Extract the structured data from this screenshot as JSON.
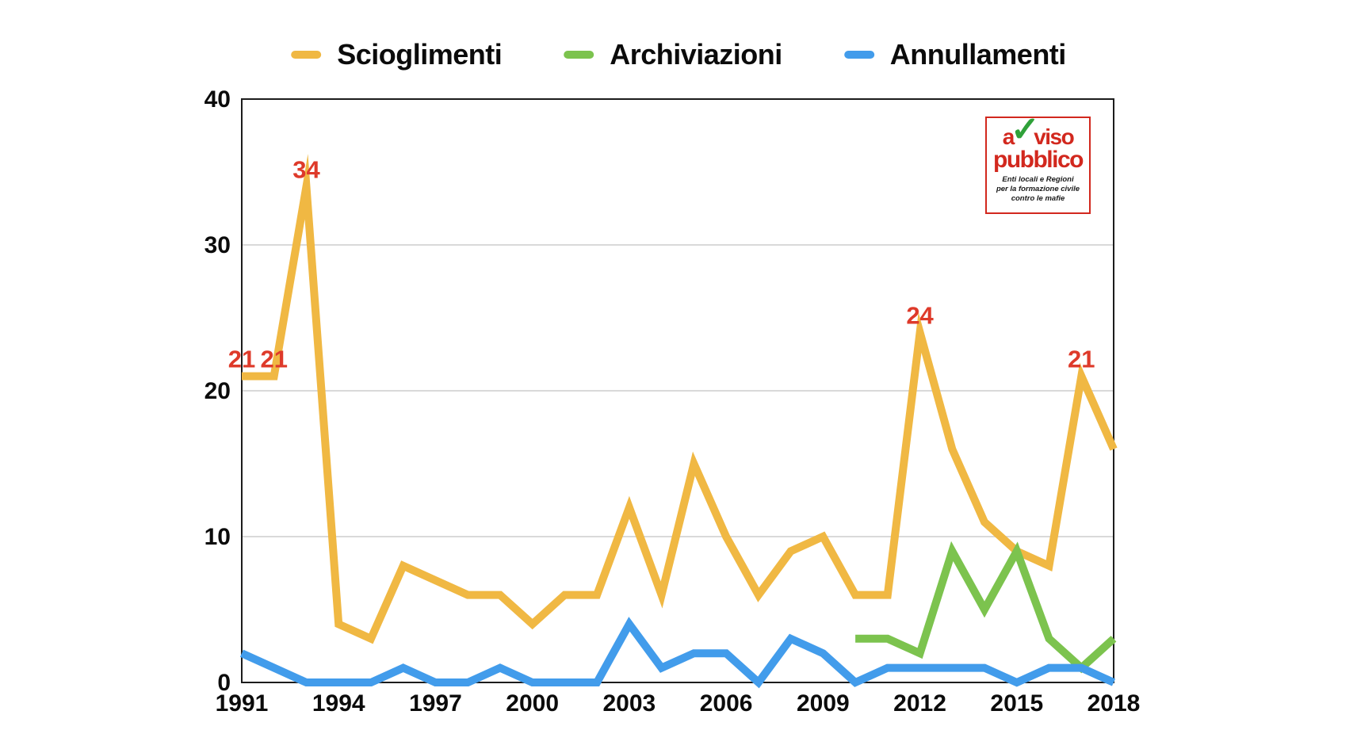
{
  "chart_data": {
    "type": "line",
    "x": [
      1991,
      1992,
      1993,
      1994,
      1995,
      1996,
      1997,
      1998,
      1999,
      2000,
      2001,
      2002,
      2003,
      2004,
      2005,
      2006,
      2007,
      2008,
      2009,
      2010,
      2011,
      2012,
      2013,
      2014,
      2015,
      2016,
      2017,
      2018
    ],
    "series": [
      {
        "name": "Scioglimenti",
        "color": "#F0B843",
        "values": [
          21,
          21,
          34,
          4,
          3,
          8,
          7,
          6,
          6,
          4,
          6,
          6,
          12,
          6,
          15,
          10,
          6,
          9,
          10,
          6,
          6,
          24,
          16,
          11,
          9,
          8,
          21,
          16
        ]
      },
      {
        "name": "Archiviazioni",
        "color": "#7CC34E",
        "values": [
          null,
          null,
          null,
          null,
          null,
          null,
          null,
          null,
          null,
          null,
          null,
          null,
          null,
          null,
          null,
          null,
          null,
          null,
          null,
          3,
          3,
          2,
          9,
          5,
          9,
          3,
          1,
          3
        ]
      },
      {
        "name": "Annullamenti",
        "color": "#429CEB",
        "values": [
          2,
          1,
          0,
          0,
          0,
          1,
          0,
          0,
          1,
          0,
          0,
          0,
          4,
          1,
          2,
          2,
          0,
          3,
          2,
          0,
          1,
          1,
          1,
          1,
          0,
          1,
          1,
          0
        ]
      }
    ],
    "annotations": [
      {
        "series": "Scioglimenti",
        "x": 1991,
        "y": 21,
        "label": "21"
      },
      {
        "series": "Scioglimenti",
        "x": 1992,
        "y": 21,
        "label": "21"
      },
      {
        "series": "Scioglimenti",
        "x": 1993,
        "y": 34,
        "label": "34"
      },
      {
        "series": "Scioglimenti",
        "x": 2012,
        "y": 24,
        "label": "24"
      },
      {
        "series": "Scioglimenti",
        "x": 2017,
        "y": 21,
        "label": "21"
      }
    ],
    "annotation_color": "#DE3A2A",
    "y_ticks": [
      0,
      10,
      20,
      30,
      40
    ],
    "x_ticks": [
      1991,
      1994,
      1997,
      2000,
      2003,
      2006,
      2009,
      2012,
      2015,
      2018
    ],
    "ylim": [
      0,
      40
    ],
    "grid": "horizontal",
    "legend_position": "top-center"
  },
  "logo": {
    "name_part1": "a",
    "check_icon": "✓",
    "name_part2": "viso",
    "name_line2": "pubblico",
    "tagline_line1": "Enti locali e Regioni",
    "tagline_line2": "per la formazione civile",
    "tagline_line3": "contro le mafie",
    "border_color": "#D2281E",
    "text_color": "#D2281E",
    "check_color": "#2FA139"
  },
  "colors": {
    "background": "#FFFFFF",
    "grid": "#D9D9D9",
    "axis": "#1C1C1C",
    "tick_text": "#0B0B0B"
  }
}
